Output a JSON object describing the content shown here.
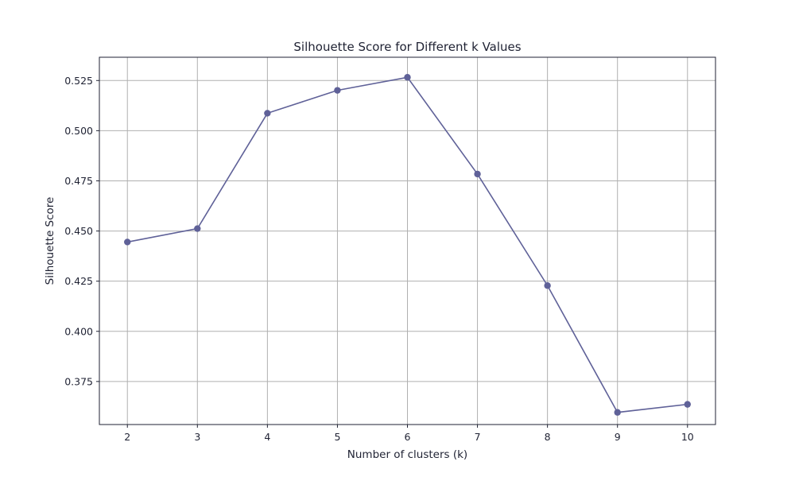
{
  "chart_data": {
    "type": "line",
    "title": "Silhouette Score for Different k Values",
    "xlabel": "Number of clusters (k)",
    "ylabel": "Silhouette Score",
    "x": [
      2,
      3,
      4,
      5,
      6,
      7,
      8,
      9,
      10
    ],
    "x_tick_labels": [
      "2",
      "3",
      "4",
      "5",
      "6",
      "7",
      "8",
      "9",
      "10"
    ],
    "series": [
      {
        "values": [
          0.4445,
          0.4512,
          0.5087,
          0.5201,
          0.5266,
          0.4784,
          0.4228,
          0.3596,
          0.3636
        ],
        "color": "#5f6198",
        "marker": "circle"
      }
    ],
    "xlim": [
      1.6,
      10.4
    ],
    "ylim": [
      0.35355,
      0.5366
    ],
    "y_ticks": [
      0.375,
      0.4,
      0.425,
      0.45,
      0.475,
      0.5,
      0.525
    ],
    "y_tick_labels": [
      "0.375",
      "0.400",
      "0.425",
      "0.450",
      "0.475",
      "0.500",
      "0.525"
    ],
    "grid": true,
    "colors": {
      "grid": "#b0b0b0",
      "axes": "#1f2233",
      "text": "#1f2233"
    }
  }
}
